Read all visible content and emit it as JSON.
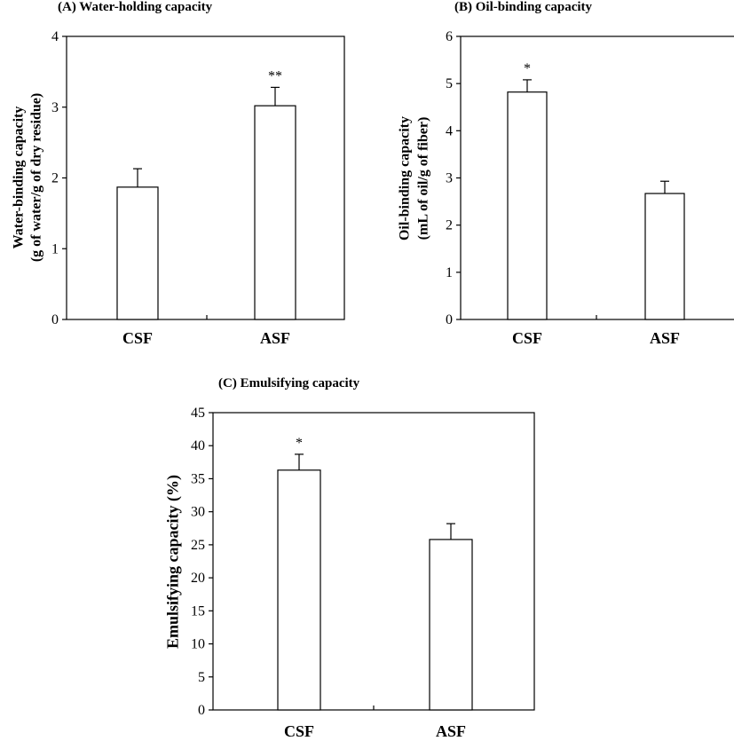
{
  "chart_data": [
    {
      "type": "bar",
      "title": "(A) Water-holding capacity",
      "ylabel_lines": [
        "Water-binding capacity",
        "(g of water/g of dry residue)"
      ],
      "xlabel": "",
      "categories": [
        "CSF",
        "ASF"
      ],
      "values": [
        1.87,
        3.02
      ],
      "errors": [
        0.26,
        0.26
      ],
      "annotations": [
        "",
        "**"
      ],
      "ylim": [
        0,
        4
      ],
      "yticks": [
        0,
        1,
        2,
        3,
        4
      ],
      "grid": false,
      "bar_color": "#ffffff"
    },
    {
      "type": "bar",
      "title": "(B) Oil-binding capacity",
      "ylabel_lines": [
        "Oil-binding capacity",
        "(mL of oil/g of fiber)"
      ],
      "xlabel": "",
      "categories": [
        "CSF",
        "ASF"
      ],
      "values": [
        4.82,
        2.67
      ],
      "errors": [
        0.26,
        0.26
      ],
      "annotations": [
        "*",
        ""
      ],
      "ylim": [
        0,
        6
      ],
      "yticks": [
        0,
        1,
        2,
        3,
        4,
        5,
        6
      ],
      "grid": false,
      "bar_color": "#ffffff"
    },
    {
      "type": "bar",
      "title": "(C) Emulsifying capacity",
      "ylabel_lines": [
        "Emulsifying capacity (%)"
      ],
      "xlabel": "",
      "categories": [
        "CSF",
        "ASF"
      ],
      "values": [
        36.3,
        25.8
      ],
      "errors": [
        2.4,
        2.4
      ],
      "annotations": [
        "*",
        ""
      ],
      "ylim": [
        0,
        45
      ],
      "yticks": [
        0,
        5,
        10,
        15,
        20,
        25,
        30,
        35,
        40,
        45
      ],
      "grid": false,
      "bar_color": "#ffffff"
    }
  ]
}
